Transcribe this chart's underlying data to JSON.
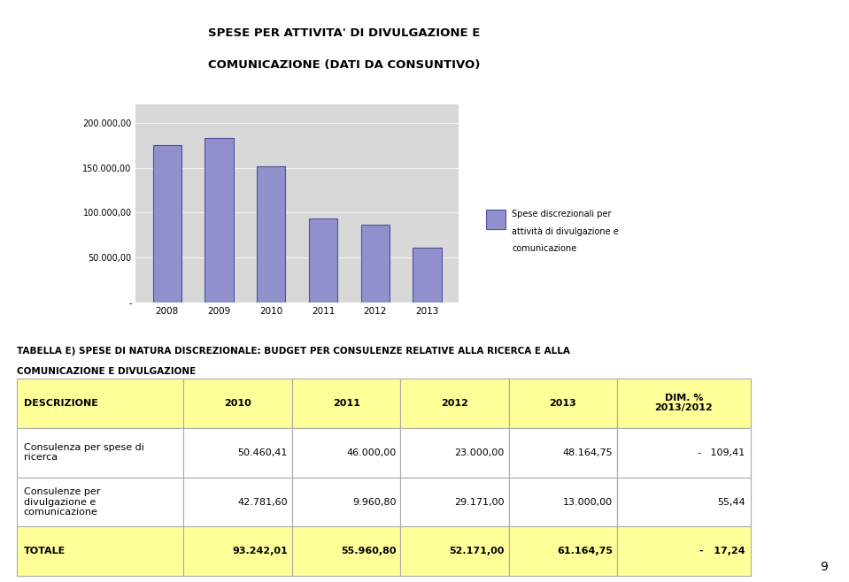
{
  "chart_title_line1": "SPESE PER ATTIVITA' DI DIVULGAZIONE E",
  "chart_title_line2": "COMUNICAZIONE (DATI DA CONSUNTIVO)",
  "bar_years": [
    "2008",
    "2009",
    "2010",
    "2011",
    "2012",
    "2013"
  ],
  "bar_values": [
    175000,
    183000,
    152000,
    93242,
    87000,
    61164
  ],
  "bar_color": "#9090cc",
  "bar_edge_color": "#5050a0",
  "chart_bg_color": "#d8d8d8",
  "legend_label_line1": "Spese discrezionali per",
  "legend_label_line2": "attività di divulgazione e",
  "legend_label_line3": "comunicazione",
  "ytick_values": [
    0,
    50000,
    100000,
    150000,
    200000
  ],
  "section_title_line1": "TABELLA E) SPESE DI NATURA DISCREZIONALE: BUDGET PER CONSULENZE RELATIVE ALLA RICERCA E ALLA",
  "section_title_line2": "COMUNICAZIONE E DIVULGAZIONE",
  "table_header": [
    "DESCRIZIONE",
    "2010",
    "2011",
    "2012",
    "2013",
    "DIM. %\n2013/2012"
  ],
  "table_header_bg": "#ffff99",
  "table_row1_label": "Consulenza per spese di\nricerca",
  "table_row1_values": [
    "50.460,41",
    "46.000,00",
    "23.000,00",
    "48.164,75",
    "-   109,41"
  ],
  "table_row2_label": "Consulenze per\ndivulgazione e\ncomunicazione",
  "table_row2_values": [
    "42.781,60",
    "9.960,80",
    "29.171,00",
    "13.000,00",
    "55,44"
  ],
  "table_row3_label": "TOTALE",
  "table_row3_values": [
    "93.242,01",
    "55.960,80",
    "52.171,00",
    "61.164,75",
    "-   17,24"
  ],
  "table_row3_bg": "#ffff99",
  "page_number": "9",
  "bg_color": "#ffffff"
}
